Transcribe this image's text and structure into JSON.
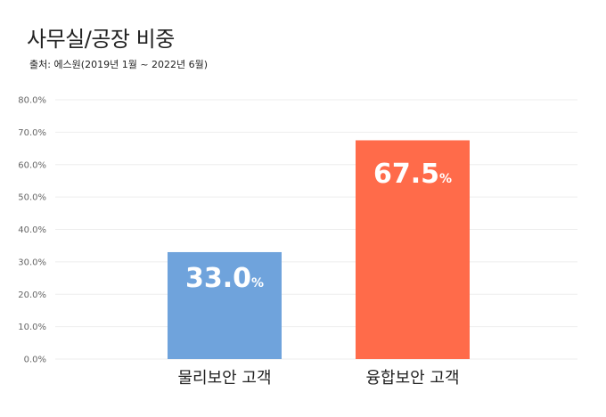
{
  "title": "사무실/공장 비중",
  "source": "출처: 에스원(2019년 1월 ~ 2022년 6월)",
  "colors": {
    "bar_physical": "#6fa3dc",
    "bar_converged": "#ff6b4a",
    "grid": "#eeeeee"
  },
  "chart_data": {
    "type": "bar",
    "title": "사무실/공장 비중",
    "xlabel": "",
    "ylabel": "",
    "ylim": [
      0,
      80
    ],
    "yticks": [
      "0.0%",
      "10.0%",
      "20.0%",
      "30.0%",
      "40.0%",
      "50.0%",
      "60.0%",
      "70.0%",
      "80.0%"
    ],
    "categories": [
      "물리보안 고객",
      "융합보안 고객"
    ],
    "values": [
      33.0,
      67.5
    ],
    "data_labels": [
      "33.0",
      "67.5"
    ],
    "unit": "%",
    "grid": true
  }
}
